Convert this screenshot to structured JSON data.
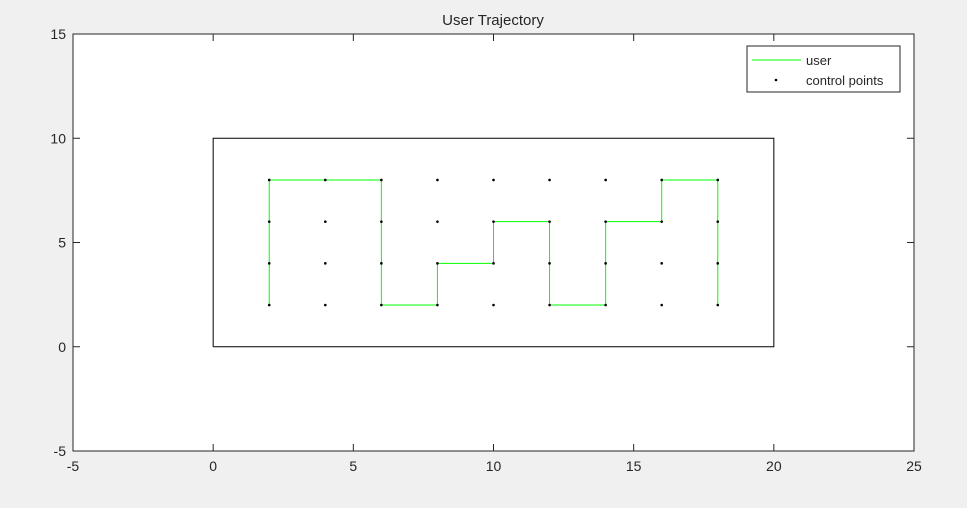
{
  "chart_data": {
    "type": "line",
    "title": "User Trajectory",
    "xlabel": "",
    "ylabel": "",
    "xlim": [
      -5,
      25
    ],
    "ylim": [
      -5,
      15
    ],
    "xticks": [
      -5,
      0,
      5,
      10,
      15,
      20,
      25
    ],
    "yticks": [
      -5,
      0,
      5,
      10,
      15
    ],
    "xtick_labels": [
      "-5",
      "0",
      "5",
      "10",
      "15",
      "20",
      "25"
    ],
    "ytick_labels": [
      "-5",
      "0",
      "5",
      "10",
      "15"
    ],
    "grid": false,
    "legend_placement": "top-right",
    "boundary": [
      [
        0,
        0
      ],
      [
        20,
        0
      ],
      [
        20,
        10
      ],
      [
        0,
        10
      ],
      [
        0,
        0
      ]
    ],
    "series": [
      {
        "name": "user",
        "color": "#00ff00",
        "style": "line",
        "x": [
          2,
          2,
          2,
          2,
          4,
          6,
          6,
          6,
          6,
          8,
          8,
          10,
          10,
          12,
          12,
          12,
          12,
          14,
          14,
          14,
          14,
          16,
          16,
          18,
          18,
          18,
          18
        ],
        "y": [
          2,
          4,
          6,
          8,
          8,
          8,
          6,
          4,
          2,
          2,
          4,
          4,
          6,
          6,
          4,
          2,
          2,
          2,
          4,
          6,
          6,
          6,
          8,
          8,
          6,
          4,
          2
        ]
      },
      {
        "name": "control points",
        "color": "#000000",
        "style": "marker",
        "x": [
          2,
          2,
          2,
          2,
          4,
          4,
          4,
          4,
          6,
          6,
          6,
          6,
          8,
          8,
          8,
          8,
          10,
          10,
          10,
          10,
          12,
          12,
          12,
          12,
          14,
          14,
          14,
          14,
          16,
          16,
          16,
          16,
          18,
          18,
          18,
          18
        ],
        "y": [
          2,
          4,
          6,
          8,
          2,
          4,
          6,
          8,
          2,
          4,
          6,
          8,
          2,
          4,
          6,
          8,
          2,
          4,
          6,
          8,
          2,
          4,
          6,
          8,
          2,
          4,
          6,
          8,
          2,
          4,
          6,
          8,
          2,
          4,
          6,
          8
        ]
      }
    ]
  }
}
